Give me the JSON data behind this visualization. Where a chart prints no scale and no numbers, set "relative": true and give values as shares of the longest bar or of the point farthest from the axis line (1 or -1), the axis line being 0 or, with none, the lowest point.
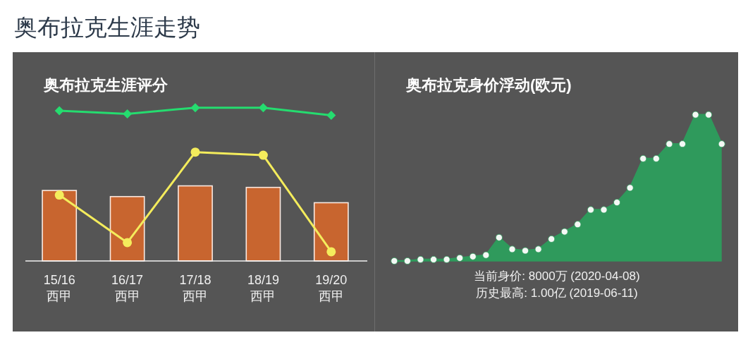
{
  "chart_data": [
    {
      "type": "other",
      "title": "奥布拉克生涯走势"
    },
    {
      "type": "bar",
      "title": "奥布拉克生涯评分",
      "relative": true,
      "categories": [
        "15/16\n西甲",
        "16/17\n西甲",
        "17/18\n西甲",
        "18/19\n西甲",
        "19/20\n西甲"
      ],
      "series": [
        {
          "color": "#c8652f",
          "values": [
            0.46,
            0.42,
            0.49,
            0.48,
            0.38
          ]
        },
        {
          "type": "line",
          "color": "#f4ec5c",
          "marker": "circle",
          "values": [
            0.43,
            0.12,
            0.71,
            0.69,
            0.06
          ]
        },
        {
          "type": "line",
          "color": "#25dc6f",
          "marker": "diamond",
          "values": [
            0.98,
            0.96,
            1,
            1,
            0.95
          ]
        }
      ]
    },
    {
      "type": "area",
      "title": "奥布拉克身价浮动(欧元)",
      "relative": true,
      "marker": "circle",
      "categories": [
        null,
        null,
        null,
        null,
        null,
        null,
        null,
        null,
        null,
        null,
        null,
        null,
        null,
        null,
        null,
        null,
        null,
        null,
        null,
        null,
        null,
        null,
        null,
        null,
        null,
        null
      ],
      "series": [
        {
          "color": "#2f9a5c",
          "values": [
            0,
            0,
            0.01,
            0.01,
            0.01,
            0.02,
            0.03,
            0.04,
            0.16,
            0.08,
            0.07,
            0.08,
            0.15,
            0.2,
            0.25,
            0.35,
            0.35,
            0.4,
            0.5,
            0.7,
            0.7,
            0.8,
            0.8,
            1,
            1,
            0.8
          ]
        }
      ],
      "annotations": [
        "当前身价: 8000万 (2020-04-08)",
        "历史最高: 1.00亿 (2019-06-11)"
      ]
    }
  ]
}
